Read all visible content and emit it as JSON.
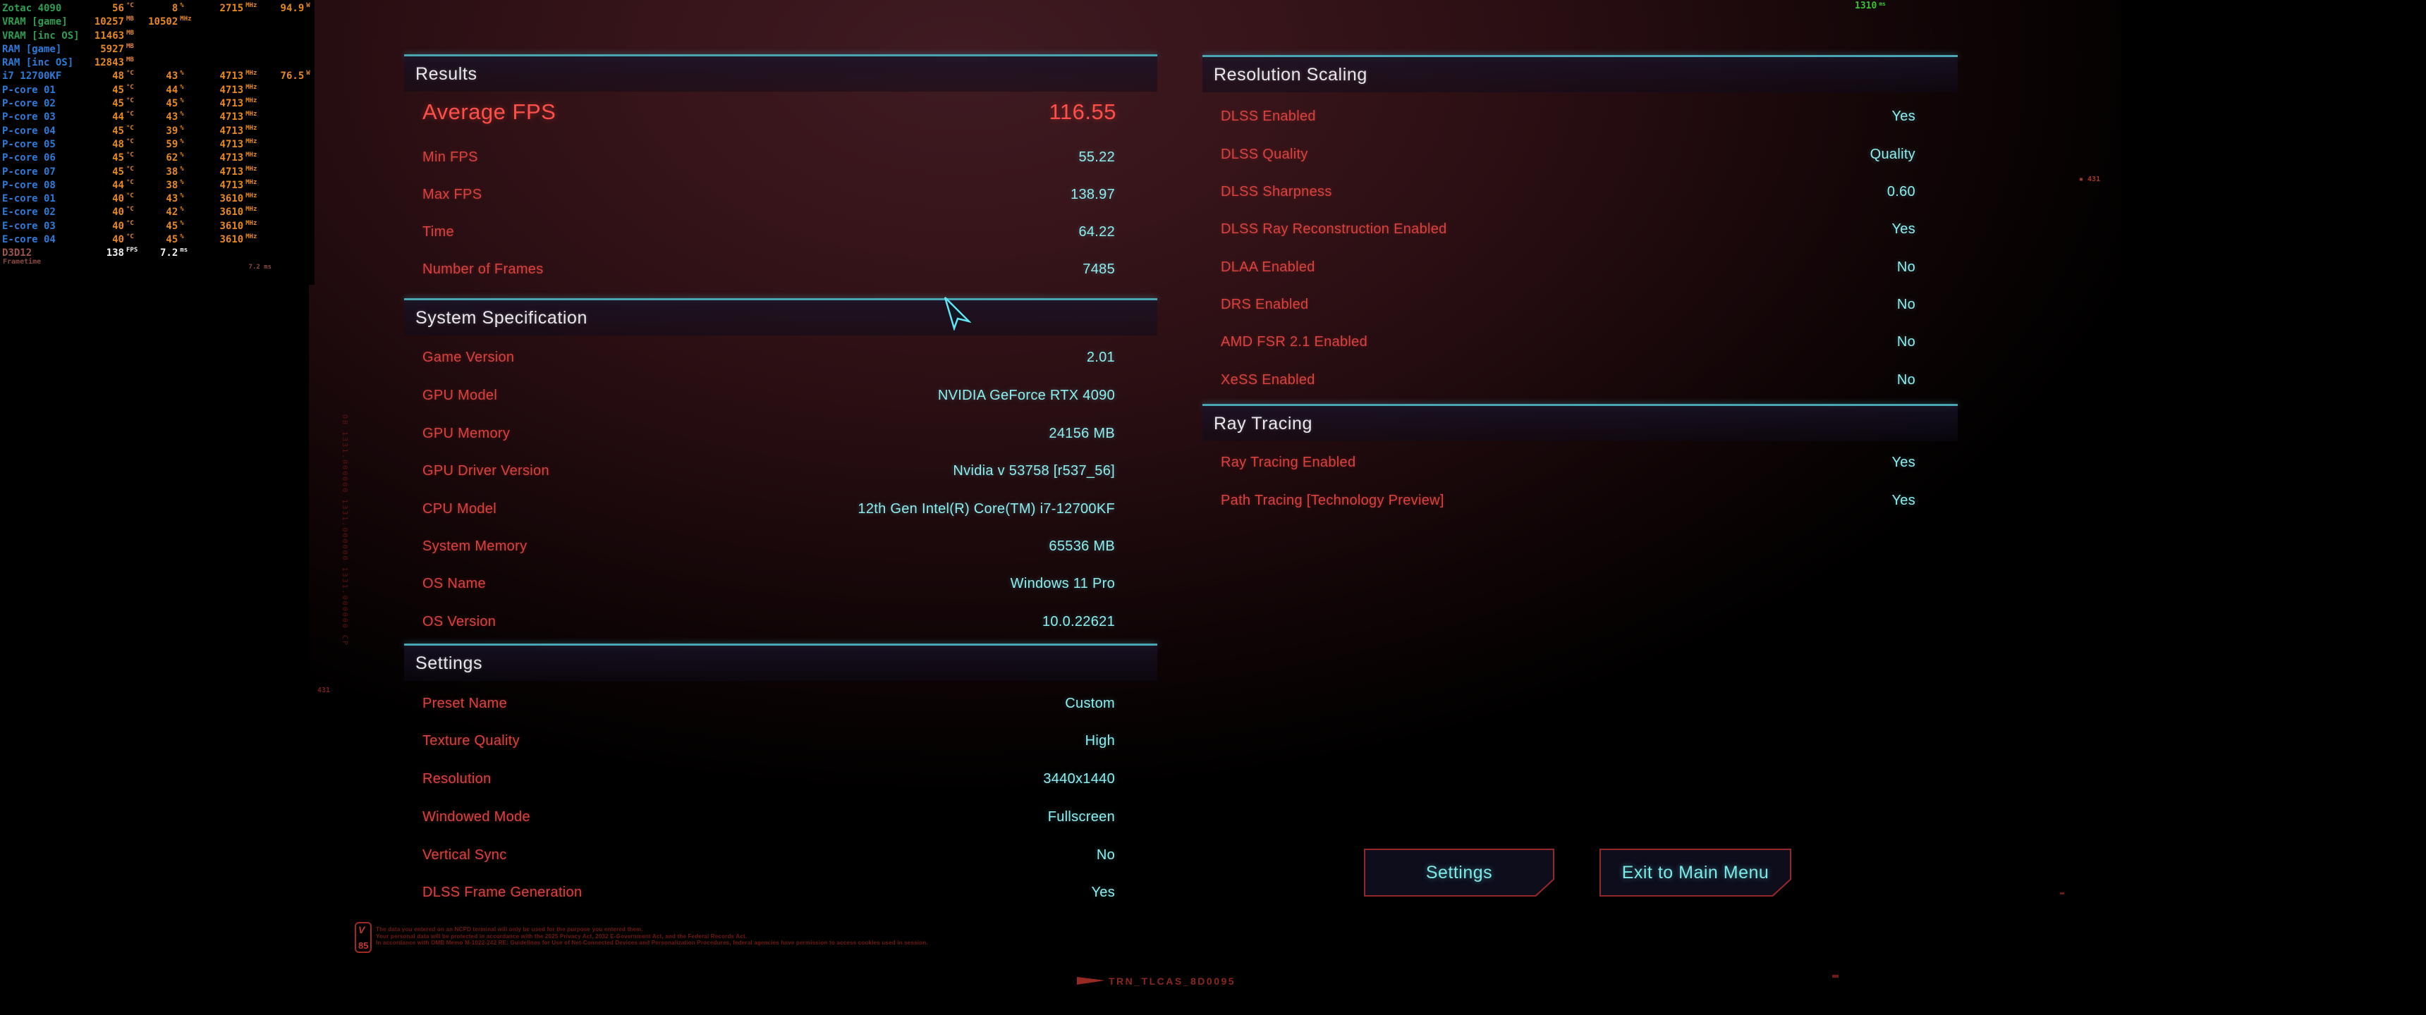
{
  "hud": {
    "rows": [
      {
        "label": "Zotac 4090",
        "lc": "g",
        "cols": [
          [
            "56",
            "°C"
          ],
          [
            "8",
            "%"
          ],
          [
            "2715",
            "MHz"
          ],
          [
            "94.9",
            "W"
          ]
        ]
      },
      {
        "label": "VRAM [game]",
        "lc": "g",
        "cols": [
          [
            "10257",
            "MB"
          ],
          [
            "10502",
            "MHz"
          ],
          null,
          null
        ],
        "shift": true
      },
      {
        "label": "VRAM [inc OS]",
        "lc": "g",
        "cols": [
          [
            "11463",
            "MB"
          ],
          null,
          null,
          null
        ]
      },
      {
        "label": "RAM [game]",
        "lc": "b",
        "cols": [
          [
            "5927",
            "MB"
          ],
          null,
          null,
          null
        ]
      },
      {
        "label": "RAM [inc OS]",
        "lc": "b",
        "cols": [
          [
            "12843",
            "MB"
          ],
          null,
          null,
          null
        ]
      },
      {
        "label": "i7 12700KF",
        "lc": "b",
        "cols": [
          [
            "48",
            "°C"
          ],
          [
            "43",
            "%"
          ],
          [
            "4713",
            "MHz"
          ],
          [
            "76.5",
            "W"
          ]
        ]
      },
      {
        "label": "P-core 01",
        "lc": "b",
        "cols": [
          [
            "45",
            "°C"
          ],
          [
            "44",
            "%"
          ],
          [
            "4713",
            "MHz"
          ],
          null
        ]
      },
      {
        "label": "P-core 02",
        "lc": "b",
        "cols": [
          [
            "45",
            "°C"
          ],
          [
            "45",
            "%"
          ],
          [
            "4713",
            "MHz"
          ],
          null
        ]
      },
      {
        "label": "P-core 03",
        "lc": "b",
        "cols": [
          [
            "44",
            "°C"
          ],
          [
            "43",
            "%"
          ],
          [
            "4713",
            "MHz"
          ],
          null
        ]
      },
      {
        "label": "P-core 04",
        "lc": "b",
        "cols": [
          [
            "45",
            "°C"
          ],
          [
            "39",
            "%"
          ],
          [
            "4713",
            "MHz"
          ],
          null
        ]
      },
      {
        "label": "P-core 05",
        "lc": "b",
        "cols": [
          [
            "48",
            "°C"
          ],
          [
            "59",
            "%"
          ],
          [
            "4713",
            "MHz"
          ],
          null
        ]
      },
      {
        "label": "P-core 06",
        "lc": "b",
        "cols": [
          [
            "45",
            "°C"
          ],
          [
            "62",
            "%"
          ],
          [
            "4713",
            "MHz"
          ],
          null
        ]
      },
      {
        "label": "P-core 07",
        "lc": "b",
        "cols": [
          [
            "45",
            "°C"
          ],
          [
            "38",
            "%"
          ],
          [
            "4713",
            "MHz"
          ],
          null
        ]
      },
      {
        "label": "P-core 08",
        "lc": "b",
        "cols": [
          [
            "44",
            "°C"
          ],
          [
            "38",
            "%"
          ],
          [
            "4713",
            "MHz"
          ],
          null
        ]
      },
      {
        "label": "E-core 01",
        "lc": "b",
        "cols": [
          [
            "40",
            "°C"
          ],
          [
            "43",
            "%"
          ],
          [
            "3610",
            "MHz"
          ],
          null
        ]
      },
      {
        "label": "E-core 02",
        "lc": "b",
        "cols": [
          [
            "40",
            "°C"
          ],
          [
            "42",
            "%"
          ],
          [
            "3610",
            "MHz"
          ],
          null
        ]
      },
      {
        "label": "E-core 03",
        "lc": "b",
        "cols": [
          [
            "40",
            "°C"
          ],
          [
            "45",
            "%"
          ],
          [
            "3610",
            "MHz"
          ],
          null
        ]
      },
      {
        "label": "E-core 04",
        "lc": "b",
        "cols": [
          [
            "40",
            "°C"
          ],
          [
            "45",
            "%"
          ],
          [
            "3610",
            "MHz"
          ],
          null
        ]
      },
      {
        "label": "D3D12",
        "lc": "api",
        "vc": "w",
        "cols": [
          [
            "138",
            "FPS"
          ],
          [
            "7.2",
            "ms"
          ],
          null,
          null
        ]
      }
    ],
    "frametime_label": "Frametime",
    "frametime_value": "7.2 ms",
    "top_timer_value": "1310",
    "top_timer_unit": "ms"
  },
  "results": {
    "title": "Results",
    "highlight": {
      "label": "Average FPS",
      "value": "116.55"
    },
    "rows": [
      [
        "Min FPS",
        "55.22"
      ],
      [
        "Max FPS",
        "138.97"
      ],
      [
        "Time",
        "64.22"
      ],
      [
        "Number of Frames",
        "7485"
      ]
    ]
  },
  "system_specification": {
    "title": "System Specification",
    "rows": [
      [
        "Game Version",
        "2.01"
      ],
      [
        "GPU Model",
        "NVIDIA GeForce RTX 4090"
      ],
      [
        "GPU Memory",
        "24156 MB"
      ],
      [
        "GPU Driver Version",
        "Nvidia v 53758 [r537_56]"
      ],
      [
        "CPU Model",
        "12th Gen Intel(R) Core(TM) i7-12700KF"
      ],
      [
        "System Memory",
        "65536 MB"
      ],
      [
        "OS Name",
        "Windows 11 Pro"
      ],
      [
        "OS Version",
        "10.0.22621"
      ]
    ]
  },
  "settings": {
    "title": "Settings",
    "rows": [
      [
        "Preset Name",
        "Custom"
      ],
      [
        "Texture Quality",
        "High"
      ],
      [
        "Resolution",
        "3440x1440"
      ],
      [
        "Windowed Mode",
        "Fullscreen"
      ],
      [
        "Vertical Sync",
        "No"
      ],
      [
        "DLSS Frame Generation",
        "Yes"
      ]
    ]
  },
  "resolution_scaling": {
    "title": "Resolution Scaling",
    "rows": [
      [
        "DLSS Enabled",
        "Yes"
      ],
      [
        "DLSS Quality",
        "Quality"
      ],
      [
        "DLSS Sharpness",
        "0.60"
      ],
      [
        "DLSS Ray Reconstruction Enabled",
        "Yes"
      ],
      [
        "DLAA Enabled",
        "No"
      ],
      [
        "DRS Enabled",
        "No"
      ],
      [
        "AMD FSR 2.1 Enabled",
        "No"
      ],
      [
        "XeSS Enabled",
        "No"
      ]
    ]
  },
  "ray_tracing": {
    "title": "Ray Tracing",
    "rows": [
      [
        "Ray Tracing Enabled",
        "Yes"
      ],
      [
        "Path Tracing [Technology Preview]",
        "Yes"
      ]
    ]
  },
  "buttons": {
    "settings": "Settings",
    "exit": "Exit to Main Menu"
  },
  "footer": {
    "badge_line1": "V",
    "badge_line2": "85",
    "disclaimer": [
      "The data you entered on an NCPD terminal will only be used for the purpose you entered them.",
      "Your personal data will be protected in accordance with the 2025 Privacy Act, 2032 E-Government Act, and the Federal Records Act.",
      "In accordance with OMB Memo M-1022-242 RE: Guidelines for Use of Net-Connected Devices and Personalization Procedures, federal agencies have permission to access cookies used in session."
    ],
    "track_id": "TRN_TLCAS_8D0095"
  },
  "decor": {
    "left_vertical_text": "OB 1331.000000 1331.000000 1331.000000 CP",
    "marker_left": "431",
    "marker_right": "▪ 431"
  },
  "colors": {
    "accent_cyan": "#4aa5b2",
    "value_cyan": "#8deef0",
    "label_red": "#d84340",
    "highlight_red": "#ff4f49",
    "button_border": "#93282b",
    "hud_green": "#2f9e53",
    "hud_blue": "#2d7bd8",
    "hud_orange": "#e8891f"
  }
}
